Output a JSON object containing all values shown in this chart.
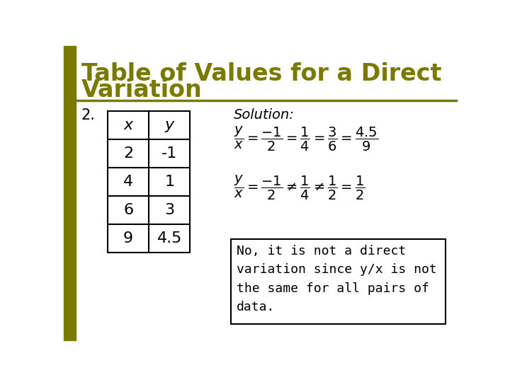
{
  "title_line1": "Table of Values for a Direct",
  "title_line2": "Variation",
  "title_color": "#7a7a00",
  "title_fontsize": 24,
  "background_color": "#ffffff",
  "separator_color": "#7a7a00",
  "left_bar_color": "#7a7a00",
  "number_label": "2.",
  "table_headers": [
    "x",
    "y"
  ],
  "table_data": [
    [
      "2",
      "-1"
    ],
    [
      "4",
      "1"
    ],
    [
      "6",
      "3"
    ],
    [
      "9",
      "4.5"
    ]
  ],
  "solution_label": "Solution:",
  "note_text": "No, it is not a direct\nvariation since y/x is not\nthe same for all pairs of\ndata."
}
